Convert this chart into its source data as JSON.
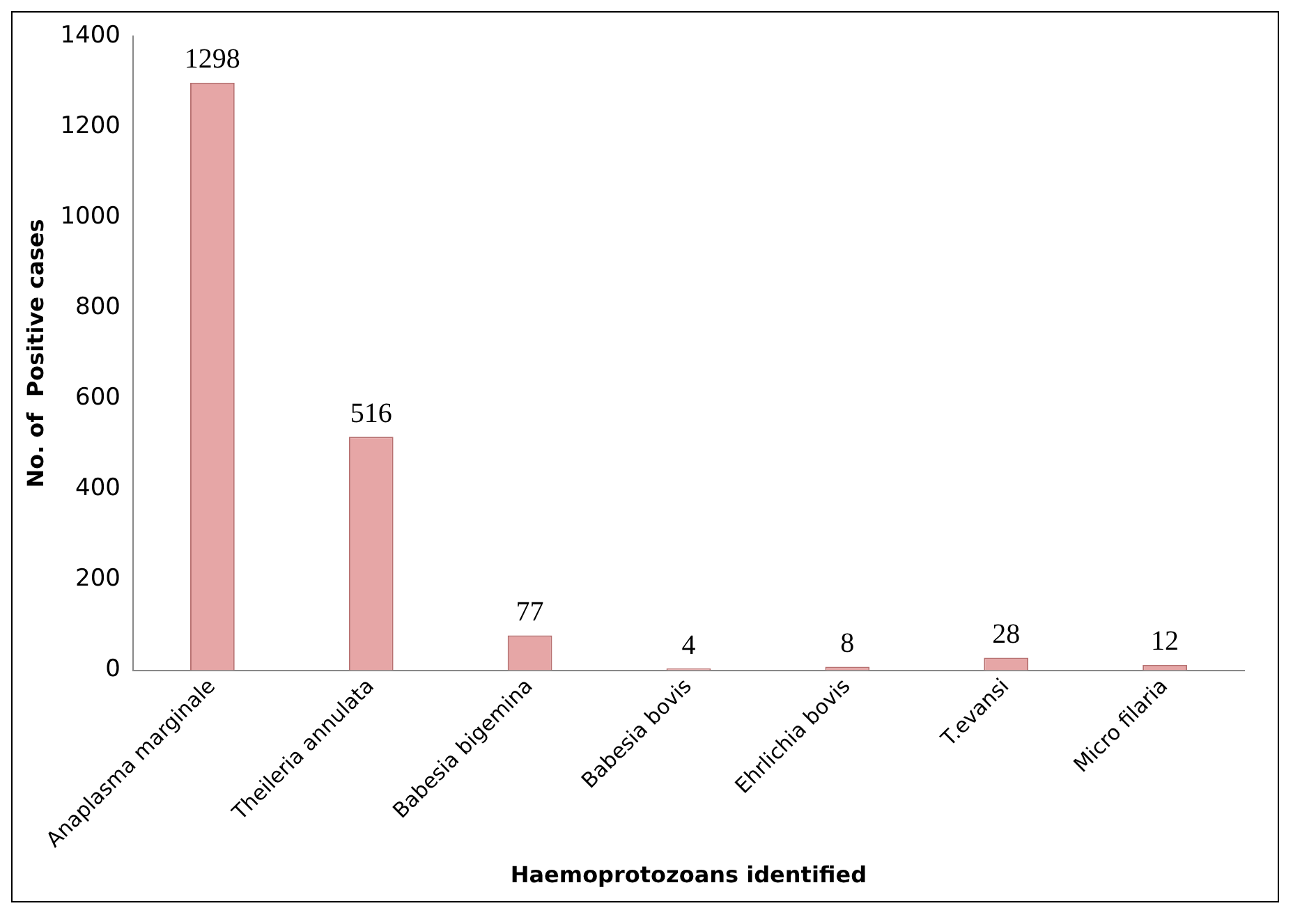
{
  "chart_data": {
    "type": "bar",
    "xlabel": "Haemoprotozoans identified",
    "ylabel": "No. of  Positive cases",
    "categories": [
      "Anaplasma marginale",
      "Theileria annulata",
      "Babesia bigemina",
      "Babesia bovis",
      "Ehrlichia bovis",
      "T.evansi",
      "Micro filaria"
    ],
    "values": [
      1298,
      516,
      77,
      4,
      8,
      28,
      12
    ],
    "color": "#e6a6a6",
    "ylim": [
      0,
      1400
    ],
    "yticks": [
      0,
      200,
      400,
      600,
      800,
      1000,
      1200,
      1400
    ],
    "grid": false,
    "legend": false,
    "data_labels": true
  }
}
